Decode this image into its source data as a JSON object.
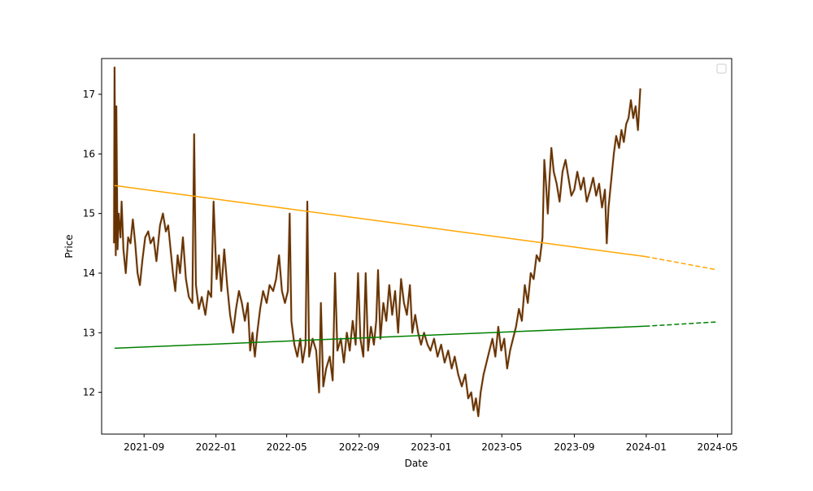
{
  "chart_data": {
    "type": "line",
    "title": "",
    "xlabel": "Date",
    "ylabel": "Price",
    "x_ticks": [
      "2021-09",
      "2022-01",
      "2022-05",
      "2022-09",
      "2023-01",
      "2023-05",
      "2023-09",
      "2024-01",
      "2024-05"
    ],
    "y_ticks": [
      12,
      13,
      14,
      15,
      16,
      17
    ],
    "xlim": [
      "2021-06-21",
      "2024-05-25"
    ],
    "ylim": [
      11.3,
      17.6
    ],
    "grid": false,
    "legend": "top-right (empty)",
    "colors": {
      "price": "#663300",
      "price_shadow": "#e8d8d0",
      "upper_trend": "#ffa500",
      "lower_trend": "#008000"
    },
    "series": [
      {
        "key": "price",
        "style": "solid",
        "points": [
          [
            "2021-07-12",
            14.5
          ],
          [
            "2021-07-13",
            17.45
          ],
          [
            "2021-07-15",
            14.3
          ],
          [
            "2021-07-16",
            16.8
          ],
          [
            "2021-07-18",
            14.4
          ],
          [
            "2021-07-20",
            15.0
          ],
          [
            "2021-07-23",
            14.6
          ],
          [
            "2021-07-25",
            15.2
          ],
          [
            "2021-07-28",
            14.4
          ],
          [
            "2021-08-01",
            14.0
          ],
          [
            "2021-08-05",
            14.6
          ],
          [
            "2021-08-09",
            14.5
          ],
          [
            "2021-08-13",
            14.9
          ],
          [
            "2021-08-17",
            14.5
          ],
          [
            "2021-08-21",
            14.0
          ],
          [
            "2021-08-25",
            13.8
          ],
          [
            "2021-08-29",
            14.2
          ],
          [
            "2021-09-03",
            14.6
          ],
          [
            "2021-09-08",
            14.7
          ],
          [
            "2021-09-12",
            14.5
          ],
          [
            "2021-09-17",
            14.6
          ],
          [
            "2021-09-22",
            14.2
          ],
          [
            "2021-09-28",
            14.8
          ],
          [
            "2021-10-03",
            15.0
          ],
          [
            "2021-10-08",
            14.7
          ],
          [
            "2021-10-12",
            14.8
          ],
          [
            "2021-10-16",
            14.4
          ],
          [
            "2021-10-20",
            14.0
          ],
          [
            "2021-10-24",
            13.7
          ],
          [
            "2021-10-28",
            14.3
          ],
          [
            "2021-11-01",
            14.0
          ],
          [
            "2021-11-06",
            14.6
          ],
          [
            "2021-11-11",
            13.9
          ],
          [
            "2021-11-16",
            13.6
          ],
          [
            "2021-11-22",
            13.5
          ],
          [
            "2021-11-25",
            16.33
          ],
          [
            "2021-11-28",
            13.8
          ],
          [
            "2021-12-03",
            13.4
          ],
          [
            "2021-12-08",
            13.6
          ],
          [
            "2021-12-14",
            13.3
          ],
          [
            "2021-12-19",
            13.7
          ],
          [
            "2021-12-24",
            13.6
          ],
          [
            "2021-12-28",
            15.2
          ],
          [
            "2022-01-02",
            13.9
          ],
          [
            "2022-01-06",
            14.3
          ],
          [
            "2022-01-10",
            13.7
          ],
          [
            "2022-01-15",
            14.4
          ],
          [
            "2022-01-20",
            13.8
          ],
          [
            "2022-01-25",
            13.3
          ],
          [
            "2022-01-30",
            13.0
          ],
          [
            "2022-02-04",
            13.4
          ],
          [
            "2022-02-09",
            13.7
          ],
          [
            "2022-02-14",
            13.5
          ],
          [
            "2022-02-19",
            13.2
          ],
          [
            "2022-02-24",
            13.5
          ],
          [
            "2022-02-28",
            12.7
          ],
          [
            "2022-03-04",
            13.0
          ],
          [
            "2022-03-08",
            12.6
          ],
          [
            "2022-03-12",
            13.0
          ],
          [
            "2022-03-17",
            13.4
          ],
          [
            "2022-03-22",
            13.7
          ],
          [
            "2022-03-28",
            13.5
          ],
          [
            "2022-04-02",
            13.8
          ],
          [
            "2022-04-08",
            13.7
          ],
          [
            "2022-04-13",
            13.9
          ],
          [
            "2022-04-18",
            14.3
          ],
          [
            "2022-04-23",
            13.7
          ],
          [
            "2022-04-28",
            13.5
          ],
          [
            "2022-05-03",
            13.7
          ],
          [
            "2022-05-06",
            15.0
          ],
          [
            "2022-05-09",
            13.2
          ],
          [
            "2022-05-14",
            12.8
          ],
          [
            "2022-05-19",
            12.6
          ],
          [
            "2022-05-24",
            12.9
          ],
          [
            "2022-05-28",
            12.5
          ],
          [
            "2022-06-02",
            12.8
          ],
          [
            "2022-06-05",
            15.2
          ],
          [
            "2022-06-08",
            12.6
          ],
          [
            "2022-06-14",
            12.9
          ],
          [
            "2022-06-20",
            12.7
          ],
          [
            "2022-06-25",
            12.0
          ],
          [
            "2022-06-28",
            13.5
          ],
          [
            "2022-07-02",
            12.1
          ],
          [
            "2022-07-07",
            12.4
          ],
          [
            "2022-07-13",
            12.6
          ],
          [
            "2022-07-18",
            12.2
          ],
          [
            "2022-07-22",
            14.0
          ],
          [
            "2022-07-26",
            12.7
          ],
          [
            "2022-08-01",
            12.9
          ],
          [
            "2022-08-06",
            12.5
          ],
          [
            "2022-08-11",
            13.0
          ],
          [
            "2022-08-16",
            12.7
          ],
          [
            "2022-08-21",
            13.2
          ],
          [
            "2022-08-26",
            12.8
          ],
          [
            "2022-08-30",
            14.0
          ],
          [
            "2022-09-03",
            12.9
          ],
          [
            "2022-09-08",
            12.6
          ],
          [
            "2022-09-12",
            14.0
          ],
          [
            "2022-09-16",
            12.7
          ],
          [
            "2022-09-21",
            13.1
          ],
          [
            "2022-09-26",
            12.8
          ],
          [
            "2022-09-30",
            13.2
          ],
          [
            "2022-10-03",
            14.05
          ],
          [
            "2022-10-07",
            12.9
          ],
          [
            "2022-10-12",
            13.5
          ],
          [
            "2022-10-17",
            13.2
          ],
          [
            "2022-10-22",
            13.8
          ],
          [
            "2022-10-27",
            13.3
          ],
          [
            "2022-11-01",
            13.7
          ],
          [
            "2022-11-06",
            13.0
          ],
          [
            "2022-11-11",
            13.9
          ],
          [
            "2022-11-16",
            13.5
          ],
          [
            "2022-11-21",
            13.3
          ],
          [
            "2022-11-26",
            13.8
          ],
          [
            "2022-11-30",
            13.0
          ],
          [
            "2022-12-05",
            13.3
          ],
          [
            "2022-12-10",
            13.0
          ],
          [
            "2022-12-15",
            12.8
          ],
          [
            "2022-12-20",
            13.0
          ],
          [
            "2022-12-26",
            12.8
          ],
          [
            "2022-12-31",
            12.7
          ],
          [
            "2023-01-06",
            12.9
          ],
          [
            "2023-01-12",
            12.6
          ],
          [
            "2023-01-18",
            12.8
          ],
          [
            "2023-01-24",
            12.5
          ],
          [
            "2023-01-30",
            12.7
          ],
          [
            "2023-02-05",
            12.4
          ],
          [
            "2023-02-10",
            12.6
          ],
          [
            "2023-02-16",
            12.3
          ],
          [
            "2023-02-22",
            12.1
          ],
          [
            "2023-02-28",
            12.3
          ],
          [
            "2023-03-05",
            11.9
          ],
          [
            "2023-03-10",
            12.0
          ],
          [
            "2023-03-14",
            11.7
          ],
          [
            "2023-03-18",
            11.9
          ],
          [
            "2023-03-22",
            11.6
          ],
          [
            "2023-03-26",
            12.0
          ],
          [
            "2023-03-31",
            12.3
          ],
          [
            "2023-04-05",
            12.5
          ],
          [
            "2023-04-10",
            12.7
          ],
          [
            "2023-04-15",
            12.9
          ],
          [
            "2023-04-20",
            12.6
          ],
          [
            "2023-04-25",
            13.1
          ],
          [
            "2023-04-30",
            12.7
          ],
          [
            "2023-05-05",
            12.9
          ],
          [
            "2023-05-10",
            12.4
          ],
          [
            "2023-05-15",
            12.7
          ],
          [
            "2023-05-20",
            12.9
          ],
          [
            "2023-05-25",
            13.1
          ],
          [
            "2023-05-30",
            13.4
          ],
          [
            "2023-06-04",
            13.2
          ],
          [
            "2023-06-09",
            13.8
          ],
          [
            "2023-06-14",
            13.5
          ],
          [
            "2023-06-19",
            14.0
          ],
          [
            "2023-06-24",
            13.9
          ],
          [
            "2023-06-29",
            14.3
          ],
          [
            "2023-07-04",
            14.2
          ],
          [
            "2023-07-09",
            14.6
          ],
          [
            "2023-07-12",
            15.9
          ],
          [
            "2023-07-15",
            15.5
          ],
          [
            "2023-07-18",
            15.0
          ],
          [
            "2023-07-21",
            15.6
          ],
          [
            "2023-07-24",
            16.1
          ],
          [
            "2023-07-28",
            15.7
          ],
          [
            "2023-08-02",
            15.5
          ],
          [
            "2023-08-07",
            15.2
          ],
          [
            "2023-08-12",
            15.7
          ],
          [
            "2023-08-17",
            15.9
          ],
          [
            "2023-08-22",
            15.6
          ],
          [
            "2023-08-27",
            15.3
          ],
          [
            "2023-09-01",
            15.4
          ],
          [
            "2023-09-06",
            15.7
          ],
          [
            "2023-09-12",
            15.4
          ],
          [
            "2023-09-17",
            15.6
          ],
          [
            "2023-09-22",
            15.2
          ],
          [
            "2023-09-28",
            15.4
          ],
          [
            "2023-10-03",
            15.6
          ],
          [
            "2023-10-08",
            15.3
          ],
          [
            "2023-10-13",
            15.5
          ],
          [
            "2023-10-18",
            15.1
          ],
          [
            "2023-10-23",
            15.4
          ],
          [
            "2023-10-26",
            14.5
          ],
          [
            "2023-10-29",
            15.1
          ],
          [
            "2023-11-03",
            15.6
          ],
          [
            "2023-11-07",
            16.0
          ],
          [
            "2023-11-11",
            16.3
          ],
          [
            "2023-11-16",
            16.1
          ],
          [
            "2023-11-20",
            16.4
          ],
          [
            "2023-11-24",
            16.2
          ],
          [
            "2023-11-28",
            16.5
          ],
          [
            "2023-12-02",
            16.6
          ],
          [
            "2023-12-06",
            16.9
          ],
          [
            "2023-12-10",
            16.6
          ],
          [
            "2023-12-14",
            16.8
          ],
          [
            "2023-12-18",
            16.4
          ],
          [
            "2023-12-22",
            17.1
          ]
        ]
      },
      {
        "key": "upper_trend",
        "style": "solid",
        "points": [
          [
            "2021-07-13",
            15.47
          ],
          [
            "2023-07-15",
            14.5
          ],
          [
            "2023-12-30",
            14.28
          ]
        ]
      },
      {
        "key": "upper_trend",
        "style": "dashed",
        "points": [
          [
            "2023-12-30",
            14.28
          ],
          [
            "2024-04-28",
            14.06
          ]
        ]
      },
      {
        "key": "lower_trend",
        "style": "solid",
        "points": [
          [
            "2021-07-13",
            12.74
          ],
          [
            "2023-12-30",
            13.11
          ]
        ]
      },
      {
        "key": "lower_trend",
        "style": "dashed",
        "points": [
          [
            "2023-12-30",
            13.11
          ],
          [
            "2024-04-28",
            13.18
          ]
        ]
      }
    ]
  }
}
